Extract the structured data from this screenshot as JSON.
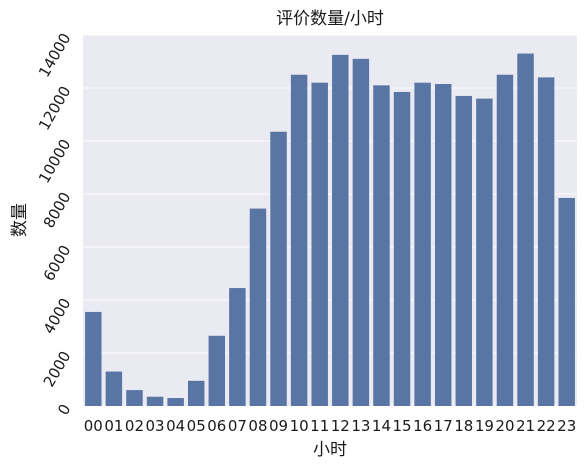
{
  "chart_data": {
    "type": "bar",
    "title": "评价数量/小时",
    "xlabel": "小时",
    "ylabel": "数量",
    "categories": [
      "00",
      "01",
      "02",
      "03",
      "04",
      "05",
      "06",
      "07",
      "08",
      "09",
      "10",
      "11",
      "12",
      "13",
      "14",
      "15",
      "16",
      "17",
      "18",
      "19",
      "20",
      "21",
      "22",
      "23"
    ],
    "values": [
      3550,
      1300,
      600,
      350,
      300,
      950,
      2650,
      4450,
      7450,
      10350,
      12500,
      12200,
      13250,
      13100,
      12100,
      11850,
      12200,
      12150,
      11700,
      11600,
      12500,
      13300,
      12400,
      7850
    ],
    "ylim": [
      0,
      14000
    ],
    "yticks": [
      0,
      2000,
      4000,
      6000,
      8000,
      10000,
      12000,
      14000
    ],
    "ytick_labels": [
      "0",
      "2000",
      "4000",
      "6000",
      "8000",
      "10000",
      "12000",
      "14000"
    ],
    "grid": true,
    "colors": {
      "bar": "#5975a4",
      "plot_background": "#eaeaf2",
      "grid": "#ffffff"
    }
  }
}
